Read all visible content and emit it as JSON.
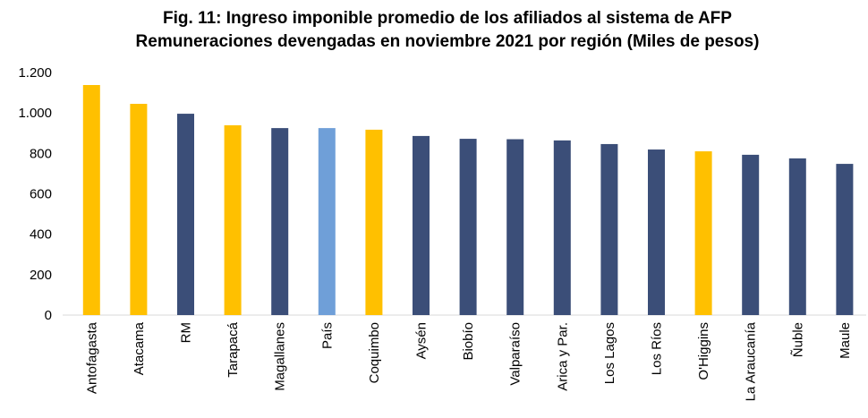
{
  "chart_data": {
    "type": "bar",
    "title": "Fig. 11: Ingreso imponible promedio de los afiliados al sistema de AFP",
    "subtitle": "Remuneraciones devengadas en noviembre 2021 por región (Miles de pesos)",
    "categories": [
      "Antofagasta",
      "Atacama",
      "RM",
      "Tarapacá",
      "Magallanes",
      "País",
      "Coquimbo",
      "Aysén",
      "Biobío",
      "Valparaíso",
      "Arica y Par.",
      "Los Lagos",
      "Los Ríos",
      "O'Higgins",
      "La Araucanía",
      "Ñuble",
      "Maule"
    ],
    "values": [
      1138,
      1045,
      996,
      939,
      925,
      925,
      917,
      886,
      872,
      870,
      864,
      846,
      819,
      810,
      793,
      775,
      748
    ],
    "colors": [
      "#ffc000",
      "#ffc000",
      "#3b4e78",
      "#ffc000",
      "#3b4e78",
      "#6f9fd8",
      "#ffc000",
      "#3b4e78",
      "#3b4e78",
      "#3b4e78",
      "#3b4e78",
      "#3b4e78",
      "#3b4e78",
      "#ffc000",
      "#3b4e78",
      "#3b4e78",
      "#3b4e78"
    ],
    "ylim": [
      0,
      1200
    ],
    "yticks": [
      0,
      200,
      400,
      600,
      800,
      {
        "value": 1000,
        "label": "1.000"
      },
      {
        "value": 1200,
        "label": "1.200"
      }
    ],
    "grid": false
  }
}
